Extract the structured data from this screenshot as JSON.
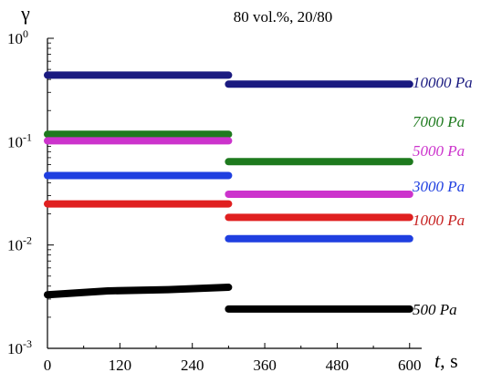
{
  "chart_data": {
    "type": "line",
    "title": "80 vol.%, 20/80",
    "ylabel": "γ",
    "xlabel_var": "t",
    "xlabel_unit": ", s",
    "xlim": [
      0,
      620
    ],
    "ylim": [
      0.001,
      1
    ],
    "y_scale": "log",
    "grid": false,
    "x_ticks": [
      "0",
      "120",
      "240",
      "360",
      "480",
      "600"
    ],
    "x_tick_values": [
      0,
      120,
      240,
      360,
      480,
      600
    ],
    "y_tick_values": [
      0.001,
      0.01,
      0.1,
      1
    ],
    "y_ticks": [
      {
        "base": "10",
        "exp": "-3"
      },
      {
        "base": "10",
        "exp": "-2"
      },
      {
        "base": "10",
        "exp": "-1"
      },
      {
        "base": "10",
        "exp": "0"
      }
    ],
    "series": [
      {
        "name": "10000 Pa",
        "color": "#1a1a80",
        "label_color": "#1a1a80",
        "segments": [
          [
            [
              0,
              0.44
            ],
            [
              300,
              0.44
            ]
          ],
          [
            [
              300,
              0.36
            ],
            [
              600,
              0.36
            ]
          ]
        ]
      },
      {
        "name": "7000 Pa",
        "color": "#1e7a1e",
        "label_color": "#1e7a1e",
        "segments": [
          [
            [
              0,
              0.118
            ],
            [
              300,
              0.118
            ]
          ],
          [
            [
              300,
              0.064
            ],
            [
              600,
              0.064
            ]
          ]
        ]
      },
      {
        "name": "5000 Pa",
        "color": "#cc33cc",
        "label_color": "#cc33cc",
        "segments": [
          [
            [
              0,
              0.102
            ],
            [
              300,
              0.102
            ]
          ],
          [
            [
              300,
              0.031
            ],
            [
              600,
              0.031
            ]
          ]
        ]
      },
      {
        "name": "3000 Pa",
        "color": "#1f3fe0",
        "label_color": "#1f3fe0",
        "segments": [
          [
            [
              0,
              0.047
            ],
            [
              300,
              0.047
            ]
          ],
          [
            [
              300,
              0.0115
            ],
            [
              600,
              0.0115
            ]
          ]
        ]
      },
      {
        "name": "1000 Pa",
        "color": "#e02020",
        "label_color": "#c62020",
        "segments": [
          [
            [
              0,
              0.025
            ],
            [
              300,
              0.025
            ]
          ],
          [
            [
              300,
              0.0185
            ],
            [
              600,
              0.0185
            ]
          ]
        ]
      },
      {
        "name": "500 Pa",
        "color": "#000000",
        "label_color": "#000000",
        "segments": [
          [
            [
              0,
              0.0033
            ],
            [
              100,
              0.0036
            ],
            [
              200,
              0.0037
            ],
            [
              300,
              0.0039
            ]
          ],
          [
            [
              300,
              0.0024
            ],
            [
              600,
              0.0024
            ]
          ]
        ]
      }
    ]
  }
}
